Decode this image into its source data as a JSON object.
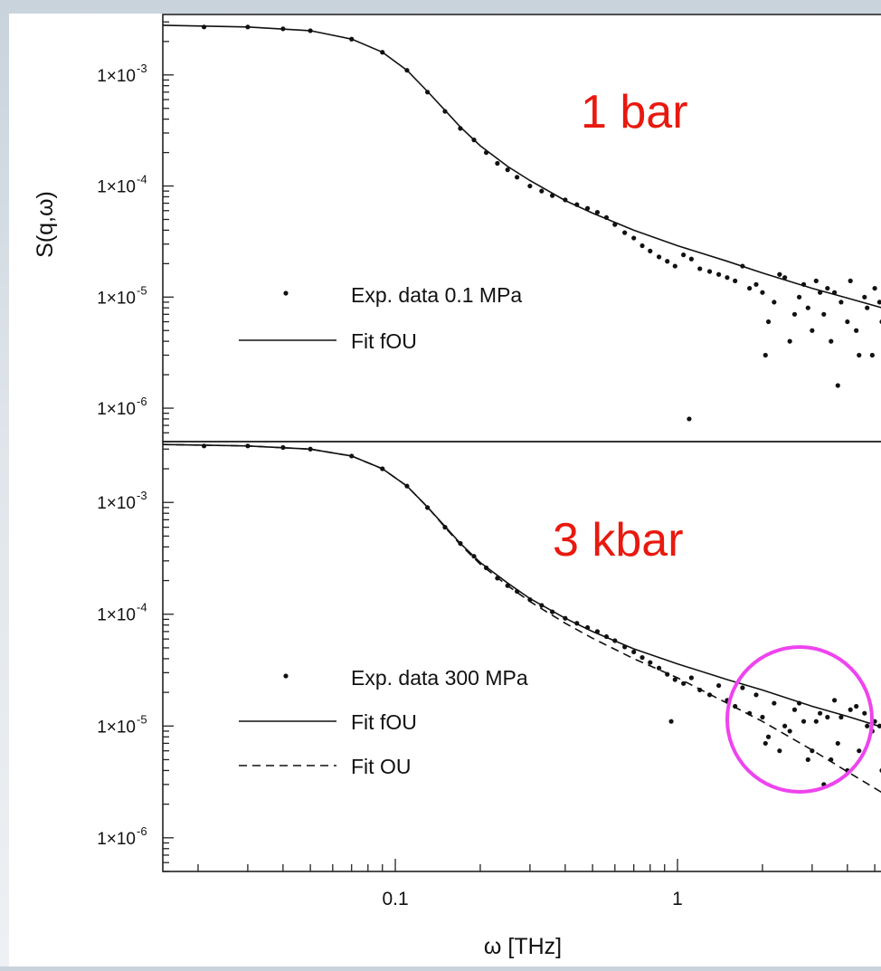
{
  "chart_data": {
    "type": "scatter",
    "x_scale": "log",
    "y_scale": "log",
    "xlim": [
      0.015,
      5.5
    ],
    "ylim": [
      5e-07,
      0.0035
    ],
    "xlabel": "ω [THz]",
    "ylabel": "S(q,ω)",
    "x_tick_labels": [
      {
        "x": 0.1,
        "label": "0.1"
      },
      {
        "x": 1,
        "label": "1"
      }
    ],
    "y_tick_labels": [
      {
        "y": 0.001,
        "label": "1×10-3",
        "mant": "1×10",
        "exp": "-3"
      },
      {
        "y": 0.0001,
        "label": "1×10-4",
        "mant": "1×10",
        "exp": "-4"
      },
      {
        "y": 1e-05,
        "label": "1×10-5",
        "mant": "1×10",
        "exp": "-5"
      },
      {
        "y": 1e-06,
        "label": "1×10-6",
        "mant": "1×10",
        "exp": "-6"
      }
    ],
    "panels": [
      {
        "annotation": "1 bar",
        "annotation_color": "#e8190f",
        "legend": [
          {
            "label": "Exp. data 0.1 MPa",
            "style": "dots"
          },
          {
            "label": "Fit fOU",
            "style": "solid"
          }
        ],
        "series": [
          {
            "name": "Exp. data 0.1 MPa",
            "kind": "points",
            "x": [
              0.021,
              0.03,
              0.04,
              0.05,
              0.07,
              0.09,
              0.11,
              0.13,
              0.15,
              0.17,
              0.19,
              0.21,
              0.23,
              0.25,
              0.27,
              0.3,
              0.33,
              0.36,
              0.4,
              0.44,
              0.48,
              0.52,
              0.56,
              0.6,
              0.65,
              0.7,
              0.75,
              0.8,
              0.86,
              0.92,
              0.98,
              1.05,
              1.12,
              1.2,
              1.3,
              1.4,
              1.5,
              1.6,
              1.7,
              1.8,
              2.0,
              2.2,
              2.4,
              2.6,
              2.8,
              3.0,
              3.2,
              3.5,
              3.8,
              4.1,
              4.4,
              4.7,
              5.0,
              5.3,
              2.1,
              2.5,
              2.9,
              3.3,
              3.7,
              4.3,
              4.9,
              1.9,
              2.3,
              2.7,
              3.4,
              4.0,
              4.6,
              5.2,
              2.05,
              3.1,
              3.6,
              1.1
            ],
            "y": [
              0.0027,
              0.0027,
              0.0026,
              0.0025,
              0.0021,
              0.0016,
              0.0011,
              0.0007,
              0.00047,
              0.00033,
              0.00026,
              0.0002,
              0.00016,
              0.00014,
              0.00012,
              0.0001,
              9e-05,
              8.2e-05,
              7.5e-05,
              6.8e-05,
              6.3e-05,
              5.8e-05,
              5.2e-05,
              4.5e-05,
              3.8e-05,
              3.4e-05,
              2.9e-05,
              2.6e-05,
              2.3e-05,
              2.1e-05,
              1.9e-05,
              2.4e-05,
              2.2e-05,
              1.8e-05,
              1.7e-05,
              1.6e-05,
              1.5e-05,
              1.4e-05,
              1.9e-05,
              1.2e-05,
              1.1e-05,
              9e-06,
              1.5e-05,
              7e-06,
              1.3e-05,
              5e-06,
              1.1e-05,
              4e-06,
              9e-06,
              1.4e-05,
              3e-06,
              8e-06,
              1.2e-05,
              6e-06,
              6e-06,
              4e-06,
              8e-06,
              7e-06,
              1.6e-06,
              5e-06,
              3e-06,
              1.3e-05,
              1.6e-05,
              1e-05,
              1.2e-05,
              6e-06,
              1e-05,
              9e-06,
              3e-06,
              1.4e-05,
              1.1e-05,
              8e-07
            ]
          },
          {
            "name": "Fit fOU",
            "kind": "line",
            "x": [
              0.015,
              0.03,
              0.05,
              0.07,
              0.09,
              0.11,
              0.13,
              0.15,
              0.17,
              0.2,
              0.25,
              0.3,
              0.4,
              0.5,
              0.7,
              1,
              1.5,
              2,
              3,
              4,
              5.5
            ],
            "y": [
              0.0028,
              0.0027,
              0.0025,
              0.0021,
              0.0016,
              0.0011,
              0.00071,
              0.00048,
              0.00034,
              0.00023,
              0.00015,
              0.000112,
              7.4e-05,
              5.7e-05,
              4e-05,
              2.9e-05,
              2.1e-05,
              1.65e-05,
              1.2e-05,
              9.8e-06,
              7.8e-06
            ]
          }
        ]
      },
      {
        "annotation": "3 kbar",
        "annotation_color": "#e8190f",
        "legend": [
          {
            "label": "Exp. data 300 MPa",
            "style": "dots"
          },
          {
            "label": "Fit fOU",
            "style": "solid"
          },
          {
            "label": "Fit OU",
            "style": "dashed"
          }
        ],
        "highlight": {
          "cx": 3.3,
          "cy": 9e-06,
          "color": "#ee44ee"
        },
        "series": [
          {
            "name": "Exp. data 300 MPa",
            "kind": "points",
            "x": [
              0.021,
              0.03,
              0.04,
              0.05,
              0.07,
              0.09,
              0.11,
              0.13,
              0.15,
              0.17,
              0.19,
              0.21,
              0.23,
              0.25,
              0.27,
              0.3,
              0.33,
              0.36,
              0.4,
              0.44,
              0.48,
              0.52,
              0.56,
              0.6,
              0.65,
              0.7,
              0.75,
              0.8,
              0.86,
              0.92,
              0.98,
              1.05,
              1.12,
              1.2,
              1.3,
              1.4,
              1.5,
              1.6,
              1.7,
              1.8,
              2.0,
              2.2,
              2.4,
              2.6,
              2.8,
              3.0,
              3.2,
              3.5,
              3.8,
              4.1,
              4.4,
              4.7,
              5.0,
              5.3,
              2.1,
              2.5,
              2.9,
              3.3,
              3.7,
              4.3,
              4.9,
              1.9,
              2.3,
              2.7,
              3.4,
              4.0,
              4.6,
              5.2,
              2.05,
              3.1,
              3.6,
              0.95
            ],
            "y": [
              0.0032,
              0.0032,
              0.0031,
              0.003,
              0.0026,
              0.002,
              0.0014,
              0.0009,
              0.0006,
              0.00043,
              0.00033,
              0.00026,
              0.00021,
              0.00018,
              0.00016,
              0.000135,
              0.00012,
              0.000105,
              9.2e-05,
              8.3e-05,
              7.6e-05,
              7e-05,
              6.3e-05,
              5.8e-05,
              5.1e-05,
              4.6e-05,
              4.1e-05,
              3.7e-05,
              3.3e-05,
              2.9e-05,
              2.6e-05,
              2.4e-05,
              2.7e-05,
              2.1e-05,
              1.9e-05,
              2.3e-05,
              1.7e-05,
              1.5e-05,
              2.2e-05,
              1.3e-05,
              1.2e-05,
              1.6e-05,
              1e-05,
              1.4e-05,
              1.1e-05,
              6e-06,
              1.3e-05,
              5e-06,
              1.2e-05,
              1.4e-05,
              6e-06,
              1e-05,
              1.1e-05,
              4e-06,
              8e-06,
              9e-06,
              5e-06,
              3e-06,
              7e-06,
              1.5e-05,
              9e-06,
              1.9e-05,
              6e-06,
              1.6e-05,
              1.2e-05,
              4e-06,
              1.3e-05,
              1e-05,
              7e-06,
              1.1e-05,
              1.7e-05,
              1.1e-05
            ]
          },
          {
            "name": "Fit fOU",
            "kind": "line",
            "x": [
              0.015,
              0.03,
              0.05,
              0.07,
              0.09,
              0.11,
              0.13,
              0.15,
              0.17,
              0.2,
              0.25,
              0.3,
              0.4,
              0.5,
              0.7,
              1,
              1.5,
              2,
              3,
              4,
              5.5
            ],
            "y": [
              0.0033,
              0.0032,
              0.003,
              0.0026,
              0.002,
              0.0014,
              0.00091,
              0.00061,
              0.00043,
              0.00029,
              0.00019,
              0.000138,
              9.2e-05,
              7e-05,
              4.9e-05,
              3.6e-05,
              2.6e-05,
              2.1e-05,
              1.5e-05,
              1.22e-05,
              9.5e-06
            ]
          },
          {
            "name": "Fit OU",
            "kind": "dashed",
            "x": [
              0.015,
              0.03,
              0.05,
              0.07,
              0.09,
              0.11,
              0.13,
              0.15,
              0.17,
              0.2,
              0.25,
              0.3,
              0.4,
              0.5,
              0.7,
              1,
              1.5,
              2,
              3,
              4,
              5.5
            ],
            "y": [
              0.0033,
              0.0032,
              0.003,
              0.0026,
              0.002,
              0.0014,
              0.00091,
              0.0006,
              0.00042,
              0.00028,
              0.00018,
              0.00013,
              8.3e-05,
              6.1e-05,
              4e-05,
              2.7e-05,
              1.6e-05,
              1.1e-05,
              6.1e-06,
              3.9e-06,
              2.4e-06
            ]
          }
        ]
      }
    ]
  }
}
